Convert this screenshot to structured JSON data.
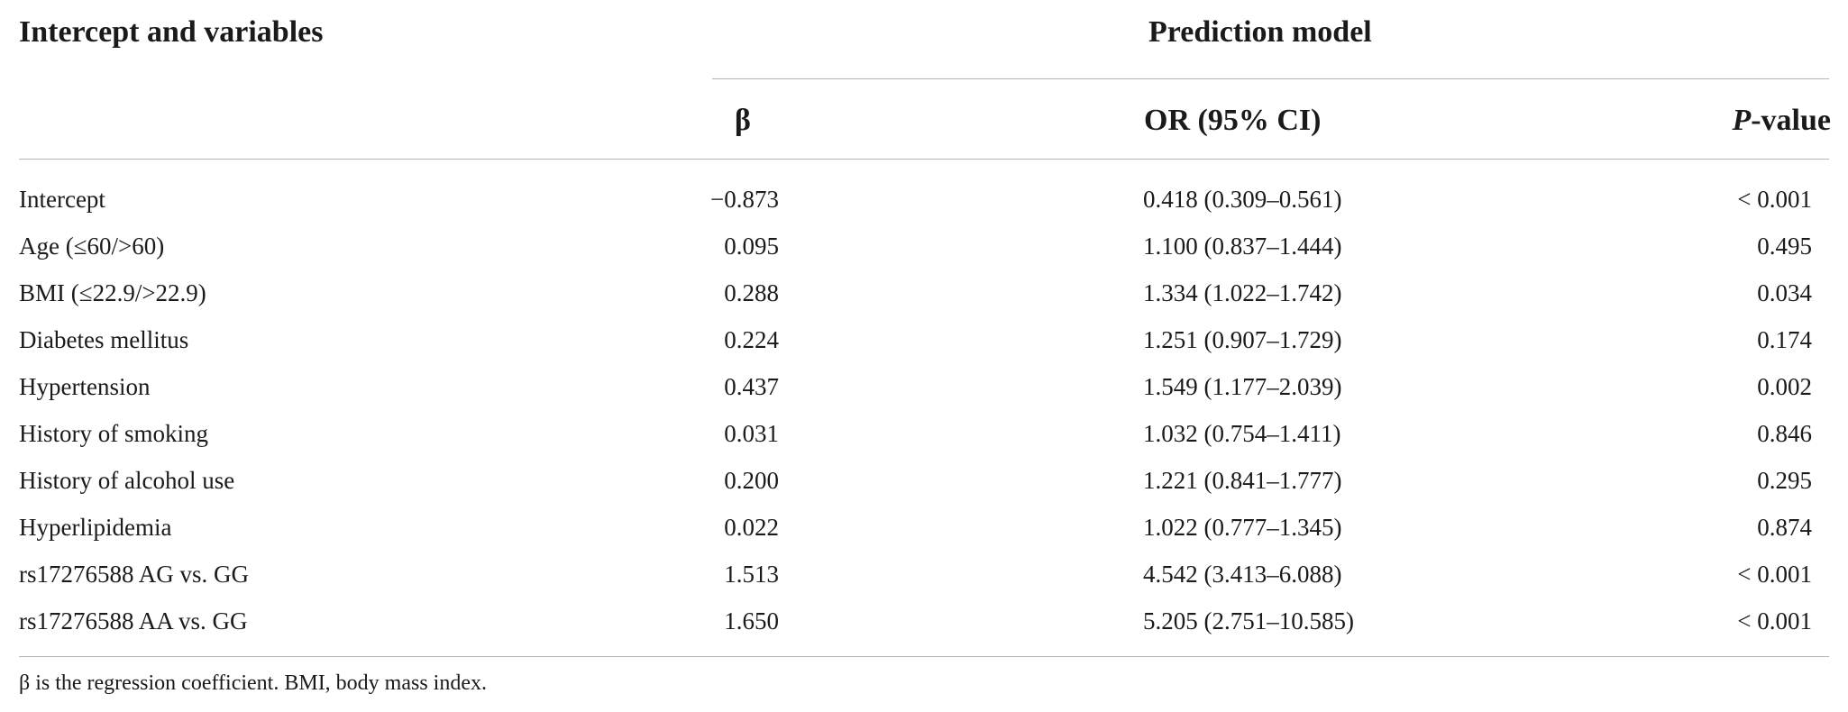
{
  "table": {
    "header": {
      "variables": "Intercept and variables",
      "model": "Prediction model",
      "beta": "β",
      "or": "OR (95% CI)",
      "p_italic": "P",
      "p_rest": "-value"
    },
    "rows": [
      {
        "variable": "Intercept",
        "beta": "−0.873",
        "or": "0.418 (0.309–0.561)",
        "p": "< 0.001"
      },
      {
        "variable": "Age (≤60/>60)",
        "beta": "0.095",
        "or": "1.100 (0.837–1.444)",
        "p": "0.495"
      },
      {
        "variable": "BMI (≤22.9/>22.9)",
        "beta": "0.288",
        "or": "1.334 (1.022–1.742)",
        "p": "0.034"
      },
      {
        "variable": "Diabetes mellitus",
        "beta": "0.224",
        "or": "1.251 (0.907–1.729)",
        "p": "0.174"
      },
      {
        "variable": "Hypertension",
        "beta": "0.437",
        "or": "1.549 (1.177–2.039)",
        "p": "0.002"
      },
      {
        "variable": "History of smoking",
        "beta": "0.031",
        "or": "1.032 (0.754–1.411)",
        "p": "0.846"
      },
      {
        "variable": "History of alcohol use",
        "beta": "0.200",
        "or": "1.221 (0.841–1.777)",
        "p": "0.295"
      },
      {
        "variable": "Hyperlipidemia",
        "beta": "0.022",
        "or": "1.022 (0.777–1.345)",
        "p": "0.874"
      },
      {
        "variable": "rs17276588 AG vs. GG",
        "beta": "1.513",
        "or": "4.542 (3.413–6.088)",
        "p": "< 0.001"
      },
      {
        "variable": "rs17276588 AA vs. GG",
        "beta": "1.650",
        "or": "5.205 (2.751–10.585)",
        "p": "< 0.001"
      }
    ],
    "footnote": "β is the regression coefficient. BMI, body mass index."
  }
}
